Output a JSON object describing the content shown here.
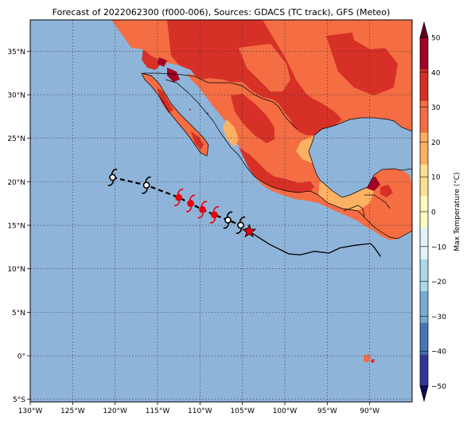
{
  "title": "Forecast of 2022062300 (f000-006), Sources: GDACS (TC track), GFS (Meteo)",
  "map": {
    "lat_labels": [
      "35°N",
      "30°N",
      "25°N",
      "20°N",
      "15°N",
      "10°N",
      "5°N",
      "0°",
      "5°S"
    ],
    "lat_values": [
      35,
      30,
      25,
      20,
      15,
      10,
      5,
      0,
      -5
    ],
    "lon_labels": [
      "130°W",
      "125°W",
      "120°W",
      "115°W",
      "110°W",
      "105°W",
      "100°W",
      "95°W",
      "90°W"
    ],
    "lon_values": [
      -130,
      -125,
      -120,
      -115,
      -110,
      -105,
      -100,
      -95,
      -90
    ],
    "lon_range": [
      -130,
      -85
    ],
    "lat_range": [
      -5.3,
      38.6
    ],
    "grid": true,
    "ocean_color": "#8fb4d9",
    "land_colors": [
      "#fdb163",
      "#f46d43",
      "#d73027",
      "#a50026"
    ]
  },
  "track": {
    "current_position": {
      "lon": -104.2,
      "lat": 14.3,
      "symbol": "star",
      "color": "#e8000a"
    },
    "forecast_points": [
      {
        "lon": -105.2,
        "lat": 15.0,
        "color": "white"
      },
      {
        "lon": -106.7,
        "lat": 15.6,
        "color": "white"
      },
      {
        "lon": -108.3,
        "lat": 16.2,
        "color": "red"
      },
      {
        "lon": -109.7,
        "lat": 16.8,
        "color": "red"
      },
      {
        "lon": -111.1,
        "lat": 17.5,
        "color": "red"
      },
      {
        "lon": -112.5,
        "lat": 18.2,
        "color": "red"
      },
      {
        "lon": -116.3,
        "lat": 19.6,
        "color": "white"
      },
      {
        "lon": -120.3,
        "lat": 20.5,
        "color": "white"
      }
    ],
    "past_track": [
      [
        -104.2,
        14.3
      ],
      [
        -101.8,
        12.8
      ],
      [
        -99.5,
        11.7
      ],
      [
        -98.2,
        11.6
      ],
      [
        -96.5,
        12.0
      ],
      [
        -94.8,
        11.8
      ],
      [
        -93.5,
        12.4
      ],
      [
        -91.7,
        12.7
      ],
      [
        -89.9,
        12.9
      ],
      [
        -89.5,
        12.5
      ],
      [
        -88.7,
        11.4
      ]
    ]
  },
  "colorbar": {
    "label": "Max Temperature (°C)",
    "ticks": [
      "50",
      "40",
      "30",
      "20",
      "10",
      "0",
      "−10",
      "−20",
      "−30",
      "−40",
      "−50"
    ],
    "colors": [
      "#313695",
      "#4575b4",
      "#74add1",
      "#abd9e9",
      "#e0f3f8",
      "#ffffbf",
      "#fee090",
      "#fdae61",
      "#f46d43",
      "#d73027",
      "#a50026"
    ]
  }
}
